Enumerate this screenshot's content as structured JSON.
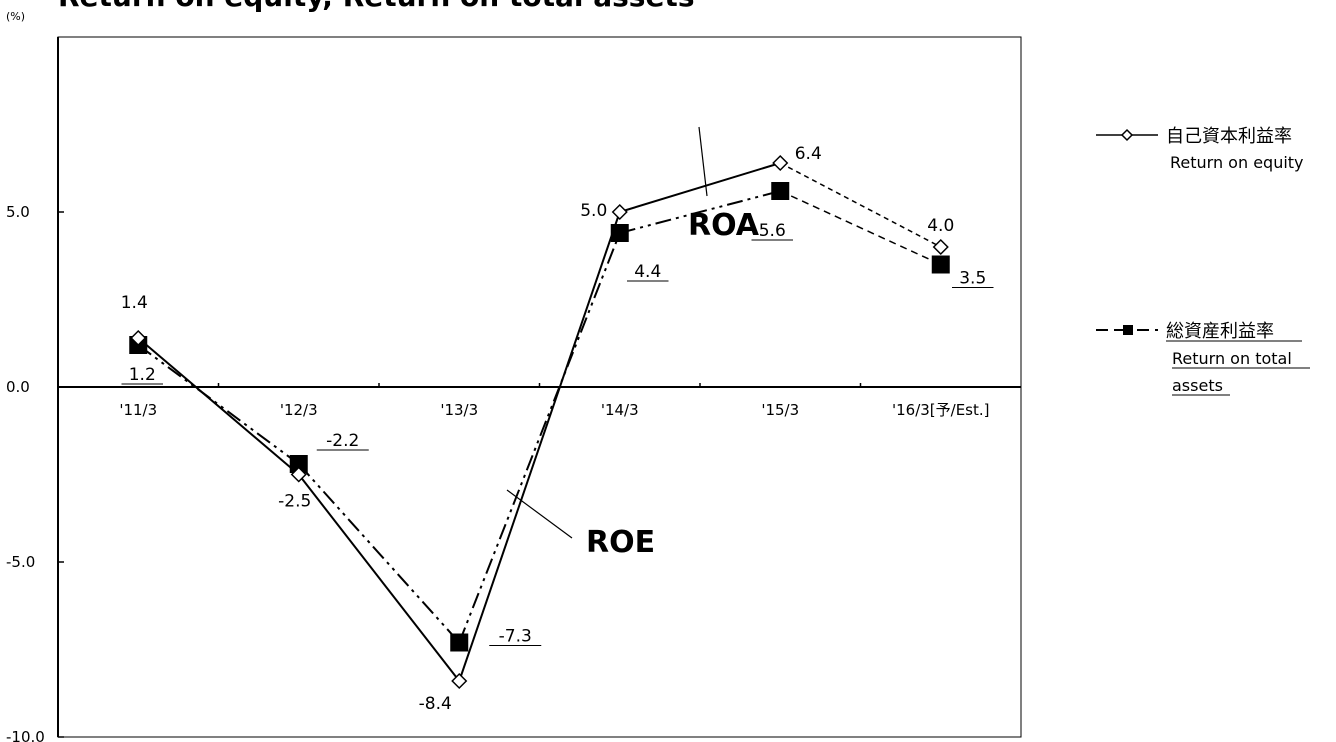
{
  "chart_data": {
    "type": "line",
    "title": "Return on equity, Return on total assets",
    "unit_label": "(%)",
    "categories": [
      "'11/3",
      "'12/3",
      "'13/3",
      "'14/3",
      "'15/3",
      "'16/3[予/Est.]"
    ],
    "y_ticks": [
      "5.0",
      "0.0",
      "-5.0",
      "-10.0"
    ],
    "ylim": [
      -10,
      10
    ],
    "grid": false,
    "legend_position": "right",
    "series": [
      {
        "key": "roe",
        "name": "自己資本利益率",
        "name_en": "Return on equity",
        "marker": "open-diamond",
        "values": [
          1.4,
          -2.5,
          -8.4,
          5.0,
          6.4,
          4.0
        ],
        "labels": [
          "1.4",
          "-2.5",
          "-8.4",
          "5.0",
          "6.4",
          "4.0"
        ],
        "labels_underlined": false,
        "color": "#000000"
      },
      {
        "key": "roa",
        "name": "総資産利益率",
        "name_en_lines": [
          "Return on total",
          "assets"
        ],
        "marker": "filled-square",
        "values": [
          1.2,
          -2.2,
          -7.3,
          4.4,
          5.6,
          3.5
        ],
        "labels": [
          "1.2",
          "-2.2",
          "-7.3",
          "4.4",
          "5.6",
          "3.5"
        ],
        "labels_underlined": true,
        "color": "#000000"
      }
    ],
    "annotations": [
      "ROA",
      "ROE"
    ]
  }
}
